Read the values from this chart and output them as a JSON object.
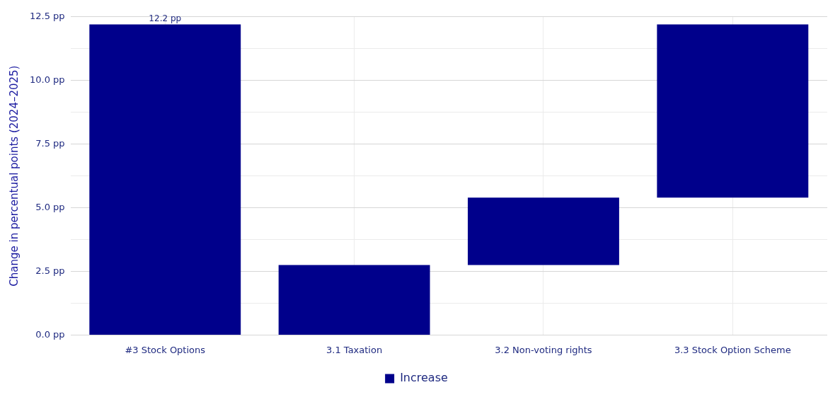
{
  "chart_data": {
    "type": "bar",
    "ylabel": "Change in percentual points (2024–2025)",
    "categories": [
      "#3 Stock Options",
      "3.1 Taxation",
      "3.2 Non-voting rights",
      "3.3 Stock Option Scheme"
    ],
    "series": [
      {
        "name": "Increase",
        "color": "#00008b",
        "values": [
          12.2,
          2.75,
          2.65,
          6.8
        ],
        "base": [
          0,
          0,
          2.75,
          5.4
        ],
        "value_labels": [
          "12.2 pp",
          null,
          null,
          null
        ]
      }
    ],
    "ylim": [
      0,
      12.5
    ],
    "yticks": [
      {
        "value": 0,
        "label": "0.0 pp"
      },
      {
        "value": 1.25,
        "label": null
      },
      {
        "value": 2.5,
        "label": "2.5 pp"
      },
      {
        "value": 3.75,
        "label": null
      },
      {
        "value": 5,
        "label": "5.0 pp"
      },
      {
        "value": 6.25,
        "label": null
      },
      {
        "value": 7.5,
        "label": "7.5 pp"
      },
      {
        "value": 8.75,
        "label": null
      },
      {
        "value": 10,
        "label": "10.0 pp"
      },
      {
        "value": 11.25,
        "label": null
      },
      {
        "value": 12.5,
        "label": "12.5 pp"
      }
    ],
    "grid": true,
    "legend": "bottom"
  }
}
